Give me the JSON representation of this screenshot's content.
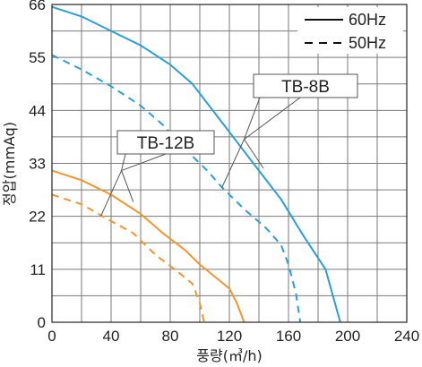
{
  "chart_data": {
    "type": "line",
    "title": "",
    "xlabel": "풍량(㎥/h)",
    "ylabel": "정압(mmAq)",
    "xlim": [
      0,
      240
    ],
    "ylim": [
      0,
      66
    ],
    "x_ticks": [
      "0",
      "40",
      "80",
      "120",
      "160",
      "200",
      "240"
    ],
    "y_ticks": [
      "0",
      "11",
      "22",
      "33",
      "44",
      "55",
      "66"
    ],
    "x_grid_step": 20,
    "y_grid_step": 5.5,
    "grid": true,
    "legend_position": "top-right",
    "legend": [
      {
        "label": "60Hz",
        "style": "solid"
      },
      {
        "label": "50Hz",
        "style": "dashed"
      }
    ],
    "series": [
      {
        "name": "TB-8B",
        "style": "solid",
        "freq": "60Hz",
        "color": "#2a9fd6",
        "points": [
          [
            0,
            65.5
          ],
          [
            20,
            63.5
          ],
          [
            40,
            60.5
          ],
          [
            60,
            57.5
          ],
          [
            80,
            53.5
          ],
          [
            95,
            49.5
          ],
          [
            110,
            43.5
          ],
          [
            125,
            37.5
          ],
          [
            140,
            31.5
          ],
          [
            155,
            25.5
          ],
          [
            170,
            18
          ],
          [
            185,
            11
          ],
          [
            195,
            0
          ]
        ]
      },
      {
        "name": "TB-8B",
        "style": "dashed",
        "freq": "50Hz",
        "color": "#2a9fd6",
        "points": [
          [
            0,
            55.5
          ],
          [
            20,
            52.5
          ],
          [
            40,
            49
          ],
          [
            60,
            45
          ],
          [
            75,
            41
          ],
          [
            90,
            36
          ],
          [
            105,
            31.5
          ],
          [
            115,
            28
          ],
          [
            130,
            23.5
          ],
          [
            145,
            19.5
          ],
          [
            155,
            16
          ],
          [
            160,
            12
          ],
          [
            165,
            6
          ],
          [
            168,
            0
          ]
        ]
      },
      {
        "name": "TB-12B",
        "style": "solid",
        "freq": "60Hz",
        "color": "#f0962e",
        "points": [
          [
            0,
            31.5
          ],
          [
            20,
            29.5
          ],
          [
            40,
            26.5
          ],
          [
            60,
            22.5
          ],
          [
            75,
            18.5
          ],
          [
            90,
            15
          ],
          [
            100,
            12
          ],
          [
            110,
            9.5
          ],
          [
            120,
            7
          ],
          [
            125,
            4
          ],
          [
            130,
            0
          ]
        ]
      },
      {
        "name": "TB-12B",
        "style": "dashed",
        "freq": "50Hz",
        "color": "#f0962e",
        "points": [
          [
            0,
            26.5
          ],
          [
            20,
            24.5
          ],
          [
            40,
            21
          ],
          [
            55,
            18.5
          ],
          [
            70,
            14
          ],
          [
            85,
            10.5
          ],
          [
            95,
            8
          ],
          [
            100,
            4
          ],
          [
            103,
            0
          ]
        ]
      }
    ],
    "annotations": [
      {
        "text": "TB-8B",
        "points_to": [
          [
            130,
            38
          ],
          [
            130,
            38
          ]
        ]
      },
      {
        "text": "TB-12B",
        "points_to": [
          [
            45,
            33
          ],
          [
            45,
            33
          ]
        ]
      }
    ]
  }
}
